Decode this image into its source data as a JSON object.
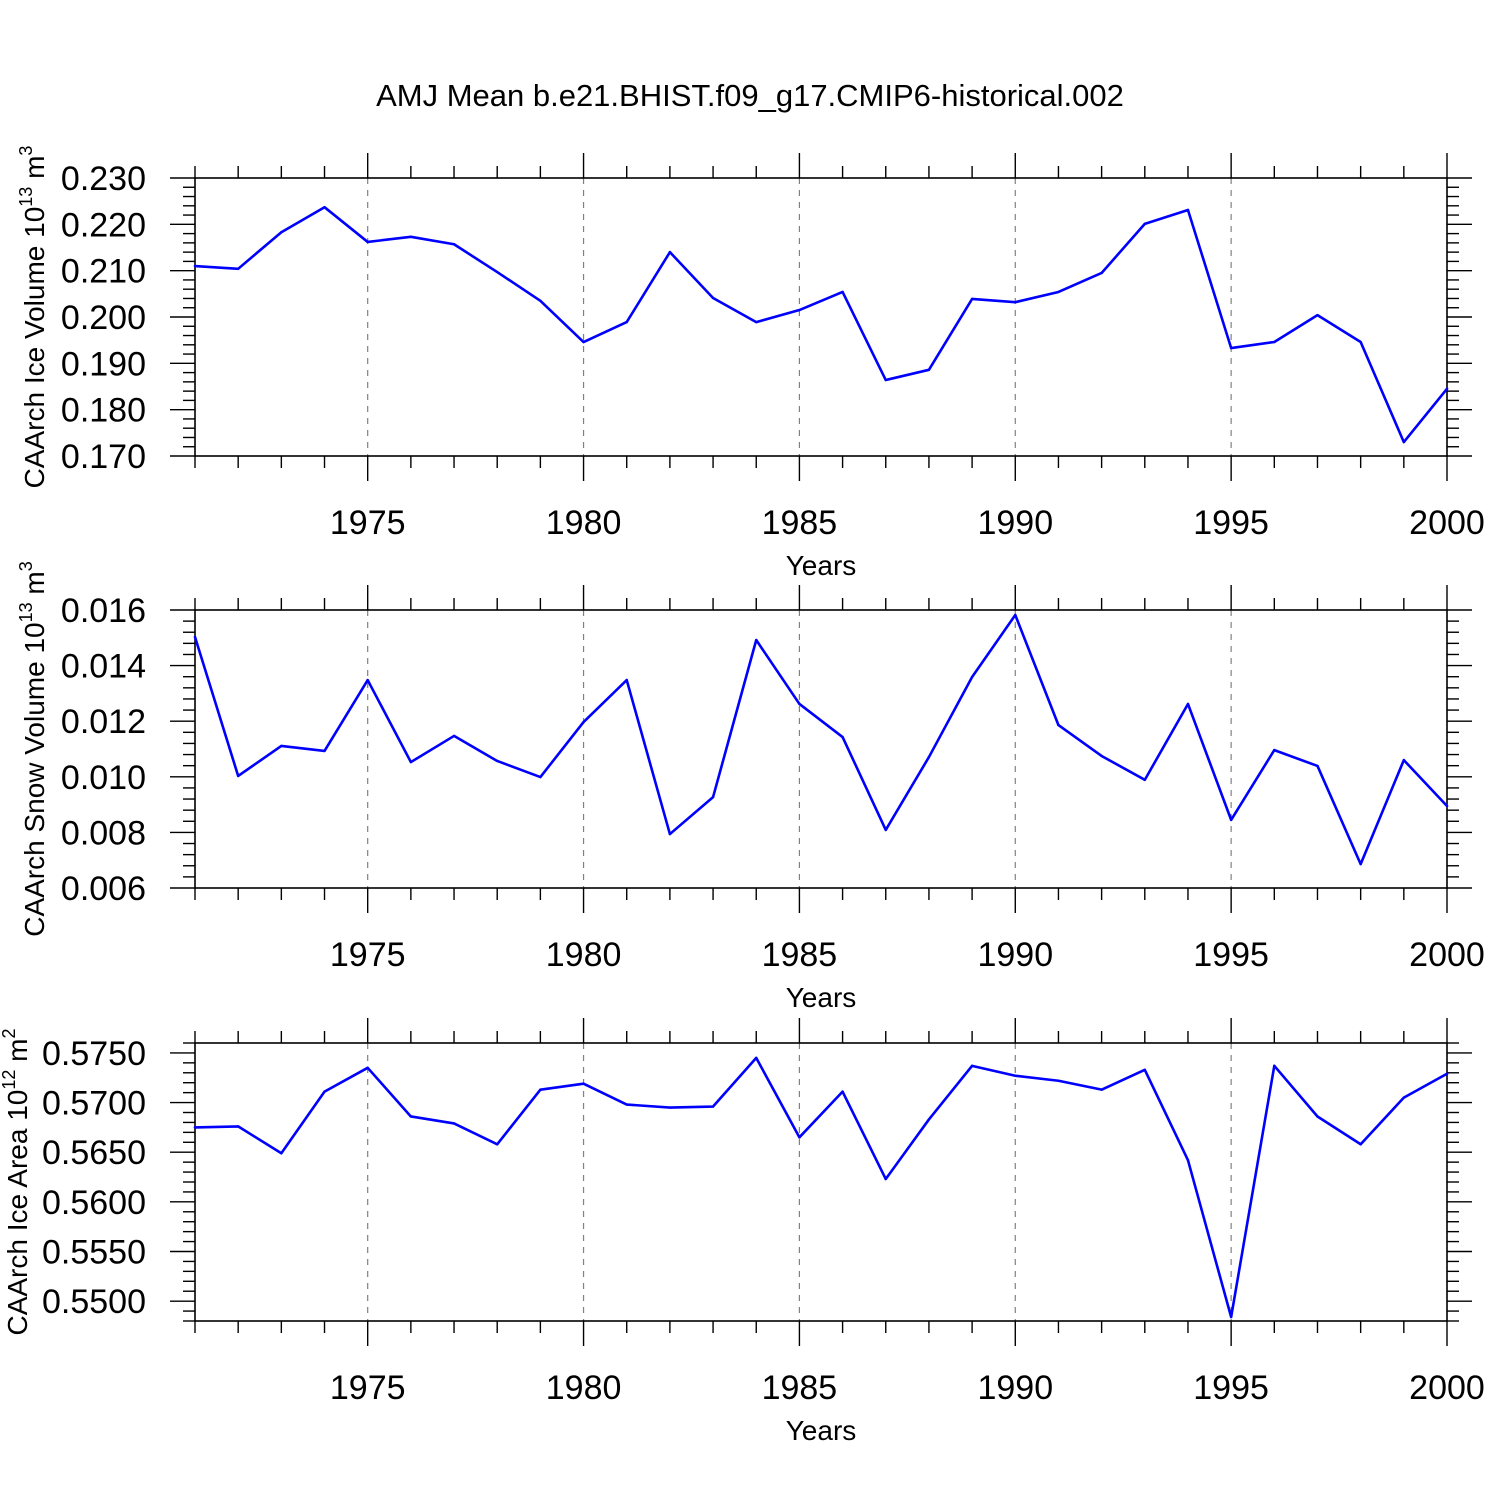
{
  "title": "AMJ Mean b.e21.BHIST.f09_g17.CMIP6-historical.002",
  "chart_data": [
    {
      "type": "line",
      "xlabel": "Years",
      "ylabel": {
        "text": "CAArch Ice Volume 10",
        "exponent": "13",
        "unit": "m",
        "unit_exponent": "3"
      },
      "xlim": [
        1971,
        2000
      ],
      "ylim": [
        0.17,
        0.23
      ],
      "x_ticks": [
        1975,
        1980,
        1985,
        1990,
        1995,
        2000
      ],
      "x_tick_labels": [
        "1975",
        "1980",
        "1985",
        "1990",
        "1995",
        "2000"
      ],
      "x_minor_step": 1,
      "y_ticks": [
        0.17,
        0.18,
        0.19,
        0.2,
        0.21,
        0.22,
        0.23
      ],
      "y_tick_labels": [
        "0.170",
        "0.180",
        "0.190",
        "0.200",
        "0.210",
        "0.220",
        "0.230"
      ],
      "y_minor_step": 0.002,
      "grid": {
        "x": true,
        "y": false,
        "color": "#808080"
      },
      "line_color": "#0000ff",
      "x": [
        1971,
        1972,
        1973,
        1974,
        1975,
        1976,
        1977,
        1978,
        1979,
        1980,
        1981,
        1982,
        1983,
        1984,
        1985,
        1986,
        1987,
        1988,
        1989,
        1990,
        1991,
        1992,
        1993,
        1994,
        1995,
        1996,
        1997,
        1998,
        1999,
        2000
      ],
      "series": [
        {
          "values": [
            0.211,
            0.2104,
            0.2183,
            0.2237,
            0.2162,
            0.2173,
            0.2157,
            0.2097,
            0.2035,
            0.1946,
            0.1989,
            0.214,
            0.2041,
            0.1989,
            0.2015,
            0.2054,
            0.1864,
            0.1886,
            0.2039,
            0.2032,
            0.2054,
            0.2095,
            0.2201,
            0.2231,
            0.1933,
            0.1946,
            0.2004,
            0.1946,
            0.173,
            0.1845
          ]
        }
      ]
    },
    {
      "type": "line",
      "xlabel": "Years",
      "ylabel": {
        "text": "CAArch Snow Volume 10",
        "exponent": "13",
        "unit": "m",
        "unit_exponent": "3"
      },
      "xlim": [
        1971,
        2000
      ],
      "ylim": [
        0.006,
        0.016
      ],
      "x_ticks": [
        1975,
        1980,
        1985,
        1990,
        1995,
        2000
      ],
      "x_tick_labels": [
        "1975",
        "1980",
        "1985",
        "1990",
        "1995",
        "2000"
      ],
      "x_minor_step": 1,
      "y_ticks": [
        0.006,
        0.008,
        0.01,
        0.012,
        0.014,
        0.016
      ],
      "y_tick_labels": [
        "0.006",
        "0.008",
        "0.010",
        "0.012",
        "0.014",
        "0.016"
      ],
      "y_minor_step": 0.0004,
      "grid": {
        "x": true,
        "y": false,
        "color": "#808080"
      },
      "line_color": "#0000ff",
      "x": [
        1971,
        1972,
        1973,
        1974,
        1975,
        1976,
        1977,
        1978,
        1979,
        1980,
        1981,
        1982,
        1983,
        1984,
        1985,
        1986,
        1987,
        1988,
        1989,
        1990,
        1991,
        1992,
        1993,
        1994,
        1995,
        1996,
        1997,
        1998,
        1999,
        2000
      ],
      "series": [
        {
          "values": [
            0.01503,
            0.01003,
            0.01111,
            0.01093,
            0.01348,
            0.01053,
            0.01147,
            0.01057,
            0.00999,
            0.01197,
            0.01348,
            0.00794,
            0.00927,
            0.01492,
            0.01262,
            0.01143,
            0.00809,
            0.01071,
            0.01359,
            0.01582,
            0.01186,
            0.01075,
            0.00989,
            0.01262,
            0.00845,
            0.01096,
            0.01039,
            0.00686,
            0.0106,
            0.00895
          ]
        }
      ]
    },
    {
      "type": "line",
      "xlabel": "Years",
      "ylabel": {
        "text": "CAArch Ice Area 10",
        "exponent": "12",
        "unit": "m",
        "unit_exponent": "2"
      },
      "xlim": [
        1971,
        2000
      ],
      "ylim": [
        0.548,
        0.576
      ],
      "x_ticks": [
        1975,
        1980,
        1985,
        1990,
        1995,
        2000
      ],
      "x_tick_labels": [
        "1975",
        "1980",
        "1985",
        "1990",
        "1995",
        "2000"
      ],
      "x_minor_step": 1,
      "y_ticks": [
        0.55,
        0.555,
        0.56,
        0.565,
        0.57,
        0.575
      ],
      "y_tick_labels": [
        "0.5500",
        "0.5550",
        "0.5600",
        "0.5650",
        "0.5700",
        "0.5750"
      ],
      "y_minor_step": 0.001,
      "grid": {
        "x": true,
        "y": false,
        "color": "#808080"
      },
      "line_color": "#0000ff",
      "x": [
        1971,
        1972,
        1973,
        1974,
        1975,
        1976,
        1977,
        1978,
        1979,
        1980,
        1981,
        1982,
        1983,
        1984,
        1985,
        1986,
        1987,
        1988,
        1989,
        1990,
        1991,
        1992,
        1993,
        1994,
        1995,
        1996,
        1997,
        1998,
        1999,
        2000
      ],
      "series": [
        {
          "values": [
            0.5675,
            0.5676,
            0.5649,
            0.5711,
            0.5735,
            0.5686,
            0.5679,
            0.5658,
            0.5713,
            0.5719,
            0.5698,
            0.5695,
            0.5696,
            0.5745,
            0.5665,
            0.5711,
            0.5623,
            0.5683,
            0.5737,
            0.5727,
            0.5722,
            0.5713,
            0.5733,
            0.5642,
            0.5484,
            0.5737,
            0.5686,
            0.5658,
            0.5705,
            0.5729
          ]
        }
      ]
    }
  ]
}
